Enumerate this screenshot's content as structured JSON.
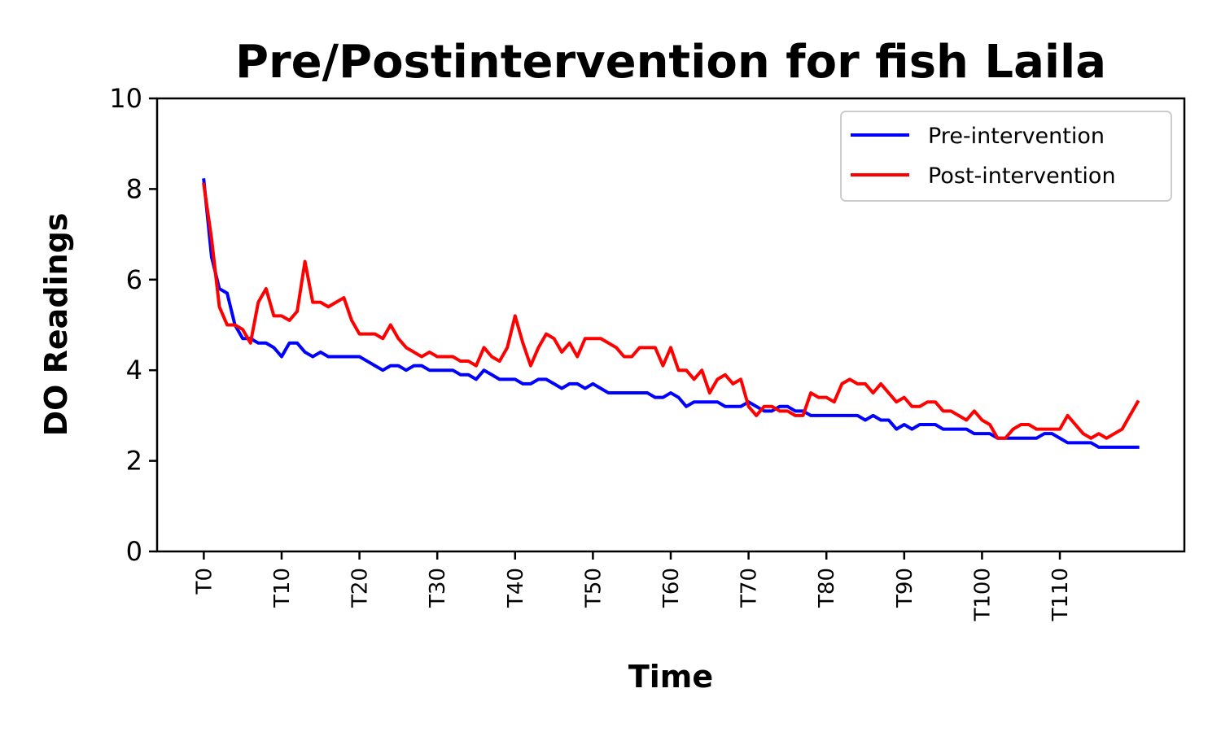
{
  "chart_data": {
    "type": "line",
    "title": "Pre/Postintervention for fish Laila",
    "xlabel": "Time",
    "ylabel": "DO Readings",
    "ylim": [
      0,
      10
    ],
    "yticks": [
      0,
      2,
      4,
      6,
      8,
      10
    ],
    "xlim": [
      -6,
      126
    ],
    "xtick_positions": [
      0,
      10,
      20,
      30,
      40,
      50,
      60,
      70,
      80,
      90,
      100,
      110
    ],
    "xtick_labels": [
      "T0",
      "T10",
      "T20",
      "T30",
      "T40",
      "T50",
      "T60",
      "T70",
      "T80",
      "T90",
      "T100",
      "T110"
    ],
    "grid": false,
    "legend_position": "top-right",
    "series": [
      {
        "name": "Pre-intervention",
        "color": "#0000ff",
        "values": [
          8.2,
          6.5,
          5.8,
          5.7,
          5.0,
          4.7,
          4.7,
          4.6,
          4.6,
          4.5,
          4.3,
          4.6,
          4.6,
          4.4,
          4.3,
          4.4,
          4.3,
          4.3,
          4.3,
          4.3,
          4.3,
          4.2,
          4.1,
          4.0,
          4.1,
          4.1,
          4.0,
          4.1,
          4.1,
          4.0,
          4.0,
          4.0,
          4.0,
          3.9,
          3.9,
          3.8,
          4.0,
          3.9,
          3.8,
          3.8,
          3.8,
          3.7,
          3.7,
          3.8,
          3.8,
          3.7,
          3.6,
          3.7,
          3.7,
          3.6,
          3.7,
          3.6,
          3.5,
          3.5,
          3.5,
          3.5,
          3.5,
          3.5,
          3.4,
          3.4,
          3.5,
          3.4,
          3.2,
          3.3,
          3.3,
          3.3,
          3.3,
          3.2,
          3.2,
          3.2,
          3.3,
          3.2,
          3.1,
          3.1,
          3.2,
          3.2,
          3.1,
          3.1,
          3.0,
          3.0,
          3.0,
          3.0,
          3.0,
          3.0,
          3.0,
          2.9,
          3.0,
          2.9,
          2.9,
          2.7,
          2.8,
          2.7,
          2.8,
          2.8,
          2.8,
          2.7,
          2.7,
          2.7,
          2.7,
          2.6,
          2.6,
          2.6,
          2.5,
          2.5,
          2.5,
          2.5,
          2.5,
          2.5,
          2.6,
          2.6,
          2.5,
          2.4,
          2.4,
          2.4,
          2.4,
          2.3,
          2.3,
          2.3,
          2.3,
          2.3,
          2.3
        ]
      },
      {
        "name": "Post-intervention",
        "color": "#ff0000",
        "values": [
          8.1,
          6.9,
          5.4,
          5.0,
          5.0,
          4.9,
          4.6,
          5.5,
          5.8,
          5.2,
          5.2,
          5.1,
          5.3,
          6.4,
          5.5,
          5.5,
          5.4,
          5.5,
          5.6,
          5.1,
          4.8,
          4.8,
          4.8,
          4.7,
          5.0,
          4.7,
          4.5,
          4.4,
          4.3,
          4.4,
          4.3,
          4.3,
          4.3,
          4.2,
          4.2,
          4.1,
          4.5,
          4.3,
          4.2,
          4.5,
          5.2,
          4.6,
          4.1,
          4.5,
          4.8,
          4.7,
          4.4,
          4.6,
          4.3,
          4.7,
          4.7,
          4.7,
          4.6,
          4.5,
          4.3,
          4.3,
          4.5,
          4.5,
          4.5,
          4.1,
          4.5,
          4.0,
          4.0,
          3.8,
          4.0,
          3.5,
          3.8,
          3.9,
          3.7,
          3.8,
          3.2,
          3.0,
          3.2,
          3.2,
          3.1,
          3.1,
          3.0,
          3.0,
          3.5,
          3.4,
          3.4,
          3.3,
          3.7,
          3.8,
          3.7,
          3.7,
          3.5,
          3.7,
          3.5,
          3.3,
          3.4,
          3.2,
          3.2,
          3.3,
          3.3,
          3.1,
          3.1,
          3.0,
          2.9,
          3.1,
          2.9,
          2.8,
          2.5,
          2.5,
          2.7,
          2.8,
          2.8,
          2.7,
          2.7,
          2.7,
          2.7,
          3.0,
          2.8,
          2.6,
          2.5,
          2.6,
          2.5,
          2.6,
          2.7,
          3.0,
          3.3
        ]
      }
    ]
  }
}
